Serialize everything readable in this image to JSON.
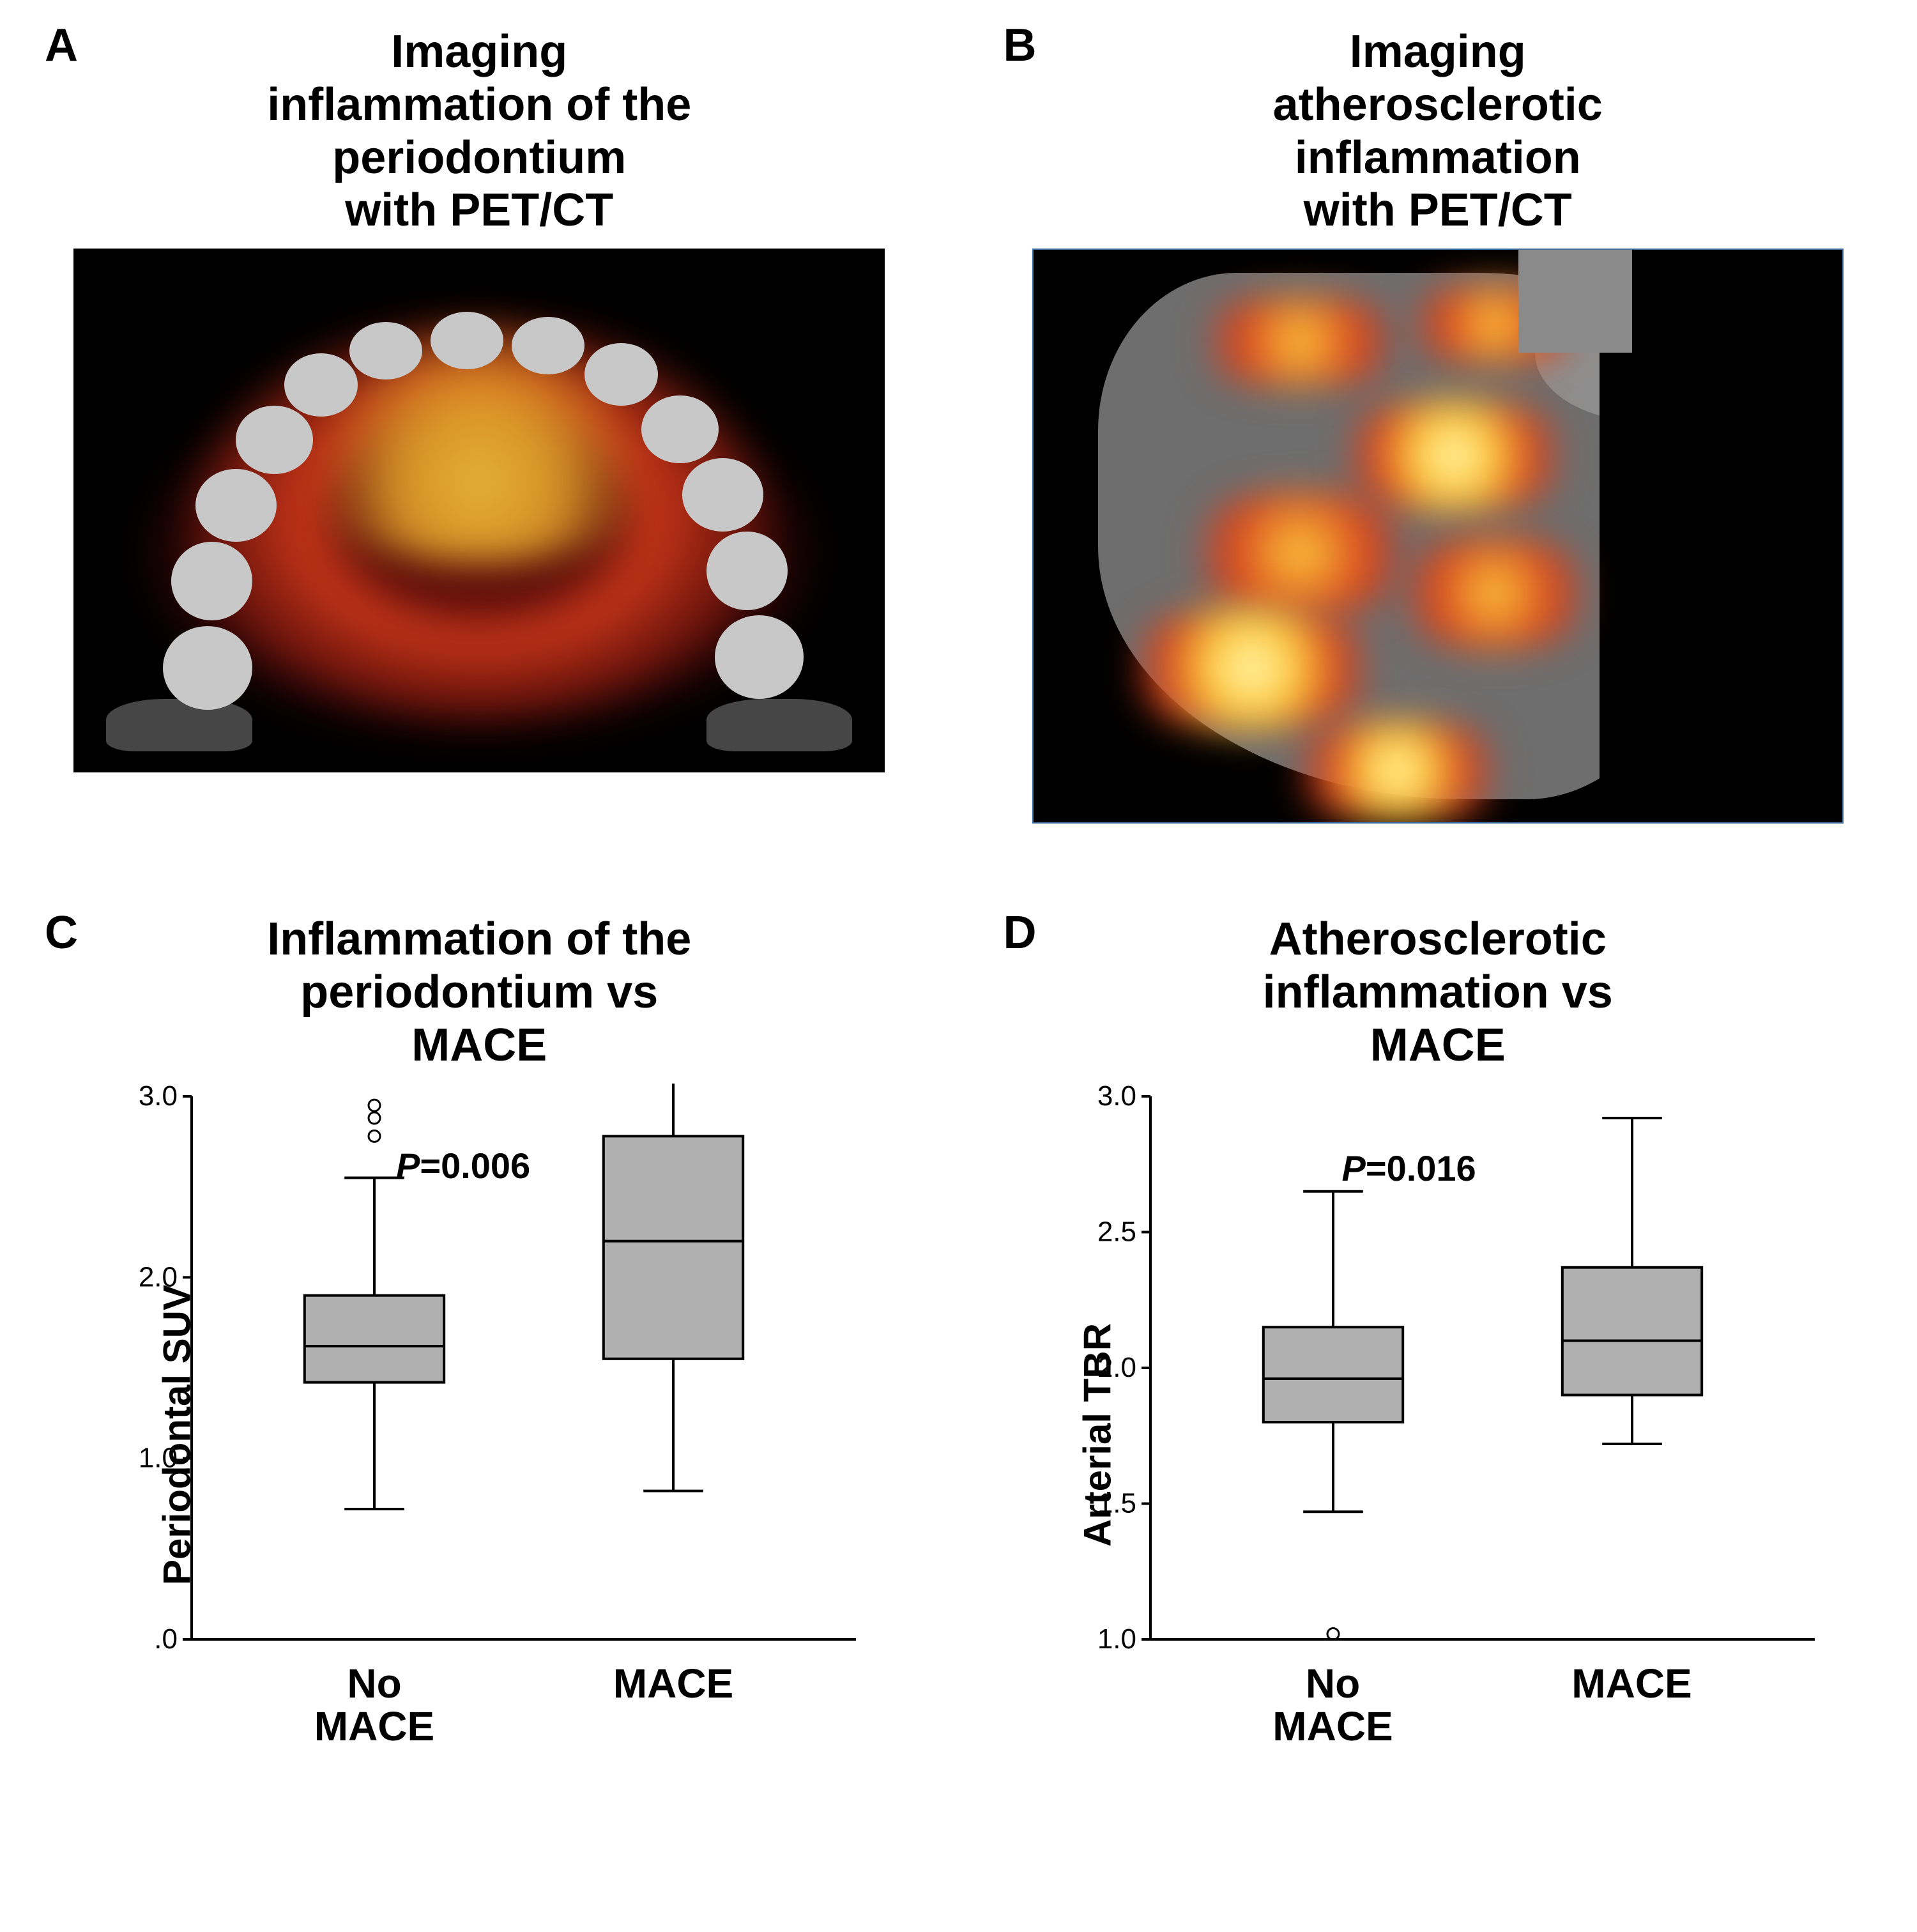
{
  "layout": {
    "panel_label_fontsize": 72,
    "title_fontsize": 72,
    "axis_label_fontsize": 60,
    "tick_fontsize": 44,
    "category_fontsize": 64,
    "pvalue_fontsize": 56
  },
  "colors": {
    "page_bg": "#ffffff",
    "text": "#000000",
    "scan_bg": "#000000",
    "scan_border_B": "#3b6aa0",
    "ct_grey": "#6e6e6e",
    "tooth_grey": "#c8c8c8",
    "hot_outer": "#5a0d0b",
    "hot_mid": "#d63b1a",
    "hot_inner": "#ffcf3d",
    "hot_core": "#fff7c2",
    "box_fill": "#b0b0b0",
    "box_stroke": "#000000",
    "grid": "#000000"
  },
  "panelA": {
    "label": "A",
    "title": "Imaging\ninflammation of the\nperiodontium\nwith PET/CT"
  },
  "panelB": {
    "label": "B",
    "title": "Imaging\natherosclerotic\ninflammation\nwith PET/CT"
  },
  "panelC": {
    "label": "C",
    "title": "Inflammation of the\nperiodontium vs\nMACE",
    "ylab": "Periodontal SUV",
    "p_label": "P",
    "p_value": "=0.006",
    "type": "boxplot",
    "xlim": [
      0,
      2
    ],
    "ylim": [
      0.0,
      3.0
    ],
    "yticks": [
      0.0,
      1.0,
      2.0,
      3.0
    ],
    "ytick_labels": [
      ".0",
      "1.0",
      "2.0",
      "3.0"
    ],
    "categories": [
      "No\nMACE",
      "MACE"
    ],
    "box_fill": "#b0b0b0",
    "box_stroke": "#000000",
    "whisker_width": 0.18,
    "box_width": 0.42,
    "line_width": 4,
    "boxes": [
      {
        "x": 0.55,
        "min": 0.72,
        "q1": 1.42,
        "median": 1.62,
        "q3": 1.9,
        "max": 2.55,
        "outliers": [
          2.78,
          2.88,
          2.95
        ]
      },
      {
        "x": 1.45,
        "min": 0.82,
        "q1": 1.55,
        "median": 2.2,
        "q3": 2.78,
        "max": 3.08,
        "outliers": []
      }
    ]
  },
  "panelD": {
    "label": "D",
    "title": "Atherosclerotic\ninflammation vs\nMACE",
    "ylab": "Arterial TBR",
    "p_label": "P",
    "p_value": "=0.016",
    "type": "boxplot",
    "xlim": [
      0,
      2
    ],
    "ylim": [
      1.0,
      3.0
    ],
    "yticks": [
      1.0,
      1.5,
      2.0,
      2.5,
      3.0
    ],
    "ytick_labels": [
      "1.0",
      "1.5",
      "2.0",
      "2.5",
      "3.0"
    ],
    "categories": [
      "No\nMACE",
      "MACE"
    ],
    "box_fill": "#b0b0b0",
    "box_stroke": "#000000",
    "whisker_width": 0.18,
    "box_width": 0.42,
    "line_width": 4,
    "boxes": [
      {
        "x": 0.55,
        "min": 1.47,
        "q1": 1.8,
        "median": 1.96,
        "q3": 2.15,
        "max": 2.65,
        "outliers": [
          1.02
        ]
      },
      {
        "x": 1.45,
        "min": 1.72,
        "q1": 1.9,
        "median": 2.1,
        "q3": 2.37,
        "max": 2.92,
        "outliers": []
      }
    ]
  }
}
